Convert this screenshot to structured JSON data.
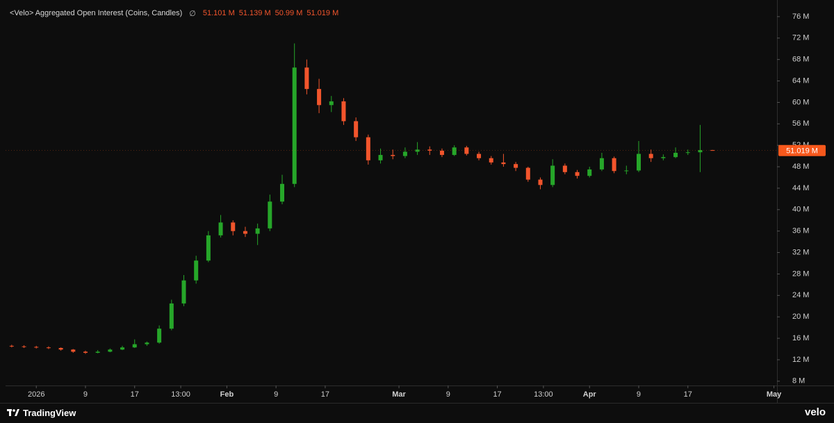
{
  "header": {
    "title": "<Velo> Aggregated Open Interest (Coins, Candles)",
    "symbol": "∅",
    "ohlc": [
      "51.101 M",
      "51.139 M",
      "50.99 M",
      "51.019 M"
    ]
  },
  "chart_data": {
    "type": "candlestick",
    "x": [
      -3,
      -1,
      1,
      3,
      5,
      7,
      9,
      11,
      13,
      15,
      17,
      19,
      21,
      23,
      25,
      27,
      29,
      31,
      33,
      35,
      37,
      39,
      41,
      43,
      45,
      47,
      49,
      51,
      53,
      55,
      57,
      59,
      61,
      63,
      65,
      67,
      69,
      71,
      73,
      75,
      77,
      79,
      81,
      83,
      85,
      87,
      89,
      91,
      93,
      95,
      97,
      99,
      101,
      103,
      105,
      107,
      109,
      111
    ],
    "open": [
      14.6,
      14.5,
      14.4,
      14.3,
      14.2,
      13.9,
      13.5,
      13.3,
      13.5,
      13.9,
      14.3,
      14.9,
      15.2,
      17.8,
      22.5,
      26.8,
      30.5,
      35.2,
      37.6,
      36.0,
      35.5,
      36.5,
      41.5,
      44.8,
      66.5,
      62.5,
      59.5,
      60.2,
      56.5,
      53.5,
      49.2,
      50.2,
      50.0,
      50.8,
      51.2,
      51.0,
      50.2,
      51.6,
      50.4,
      49.6,
      48.8,
      48.5,
      47.8,
      45.6,
      44.6,
      48.2,
      47.0,
      46.3,
      47.5,
      49.6,
      47.2,
      47.3,
      50.4,
      49.6,
      49.8,
      50.6,
      50.7,
      51.101
    ],
    "high": [
      14.8,
      14.7,
      14.6,
      14.5,
      14.3,
      14.0,
      13.7,
      13.8,
      14.1,
      14.6,
      15.8,
      15.4,
      18.4,
      23.2,
      27.8,
      31.4,
      36.0,
      39.0,
      38.0,
      36.8,
      37.4,
      42.8,
      46.5,
      71.0,
      68.0,
      64.4,
      61.2,
      60.8,
      57.2,
      54.0,
      51.4,
      51.2,
      51.6,
      52.6,
      51.8,
      51.4,
      52.0,
      51.9,
      50.8,
      50.0,
      50.4,
      48.9,
      48.0,
      46.0,
      49.4,
      48.6,
      47.4,
      48.0,
      50.6,
      49.9,
      48.2,
      52.8,
      51.2,
      50.3,
      51.6,
      51.2,
      55.8,
      51.139
    ],
    "low": [
      14.3,
      14.2,
      14.1,
      14.0,
      13.7,
      13.3,
      13.1,
      13.2,
      13.4,
      13.8,
      14.2,
      14.6,
      15.0,
      17.5,
      22.0,
      26.2,
      30.2,
      34.8,
      35.2,
      34.9,
      33.4,
      36.0,
      41.0,
      44.2,
      61.5,
      58.0,
      58.2,
      55.8,
      52.8,
      48.4,
      48.6,
      49.4,
      49.6,
      50.2,
      50.2,
      49.8,
      50.0,
      50.1,
      49.2,
      48.4,
      48.0,
      47.2,
      45.2,
      43.8,
      44.2,
      46.6,
      45.8,
      46.0,
      47.2,
      46.8,
      46.6,
      47.0,
      48.9,
      49.2,
      49.6,
      50.2,
      47.0,
      50.99
    ],
    "close": [
      14.5,
      14.4,
      14.3,
      14.2,
      13.9,
      13.5,
      13.3,
      13.5,
      13.9,
      14.3,
      14.9,
      15.2,
      17.8,
      22.5,
      26.8,
      30.5,
      35.2,
      37.6,
      36.0,
      35.5,
      36.5,
      41.5,
      44.8,
      66.5,
      62.5,
      59.5,
      60.2,
      56.5,
      53.5,
      49.2,
      50.2,
      50.0,
      50.8,
      51.2,
      51.0,
      50.2,
      51.6,
      50.4,
      49.6,
      48.8,
      48.5,
      47.8,
      45.6,
      44.6,
      48.2,
      47.0,
      46.3,
      47.5,
      49.6,
      47.2,
      47.3,
      50.4,
      49.6,
      49.8,
      50.6,
      50.7,
      51.101,
      51.019
    ],
    "up_color": "#26a629",
    "down_color": "#f2552c",
    "last_price": {
      "value": 51.019,
      "label": "51.019 M",
      "color": "#f7581c"
    },
    "xlim": [
      -4,
      121.5
    ],
    "xticks": [
      {
        "value": 1,
        "label": "2026"
      },
      {
        "value": 9,
        "label": "9"
      },
      {
        "value": 17,
        "label": "17"
      },
      {
        "value": 24.5,
        "label": "13:00"
      },
      {
        "value": 32,
        "label": "Feb"
      },
      {
        "value": 40,
        "label": "9"
      },
      {
        "value": 48,
        "label": "17"
      },
      {
        "value": 60,
        "label": "Mar"
      },
      {
        "value": 68,
        "label": "9"
      },
      {
        "value": 76,
        "label": "17"
      },
      {
        "value": 83.5,
        "label": "13:00"
      },
      {
        "value": 91,
        "label": "Apr"
      },
      {
        "value": 99,
        "label": "9"
      },
      {
        "value": 107,
        "label": "17"
      },
      {
        "value": 121,
        "label": "May"
      }
    ],
    "ylim": [
      7.2,
      79.1
    ],
    "yticks": [
      {
        "value": 8,
        "label": "8 M"
      },
      {
        "value": 12,
        "label": "12 M"
      },
      {
        "value": 16,
        "label": "16 M"
      },
      {
        "value": 20,
        "label": "20 M"
      },
      {
        "value": 24,
        "label": "24 M"
      },
      {
        "value": 28,
        "label": "28 M"
      },
      {
        "value": 32,
        "label": "32 M"
      },
      {
        "value": 36,
        "label": "36 M"
      },
      {
        "value": 40,
        "label": "40 M"
      },
      {
        "value": 44,
        "label": "44 M"
      },
      {
        "value": 48,
        "label": "48 M"
      },
      {
        "value": 52,
        "label": "52 M"
      },
      {
        "value": 56,
        "label": "56 M"
      },
      {
        "value": 60,
        "label": "60 M"
      },
      {
        "value": 64,
        "label": "64 M"
      },
      {
        "value": 68,
        "label": "68 M"
      },
      {
        "value": 72,
        "label": "72 M"
      },
      {
        "value": 76,
        "label": "76 M"
      }
    ],
    "grid": false
  },
  "footer": {
    "brand": "TradingView",
    "logo": "velo"
  }
}
